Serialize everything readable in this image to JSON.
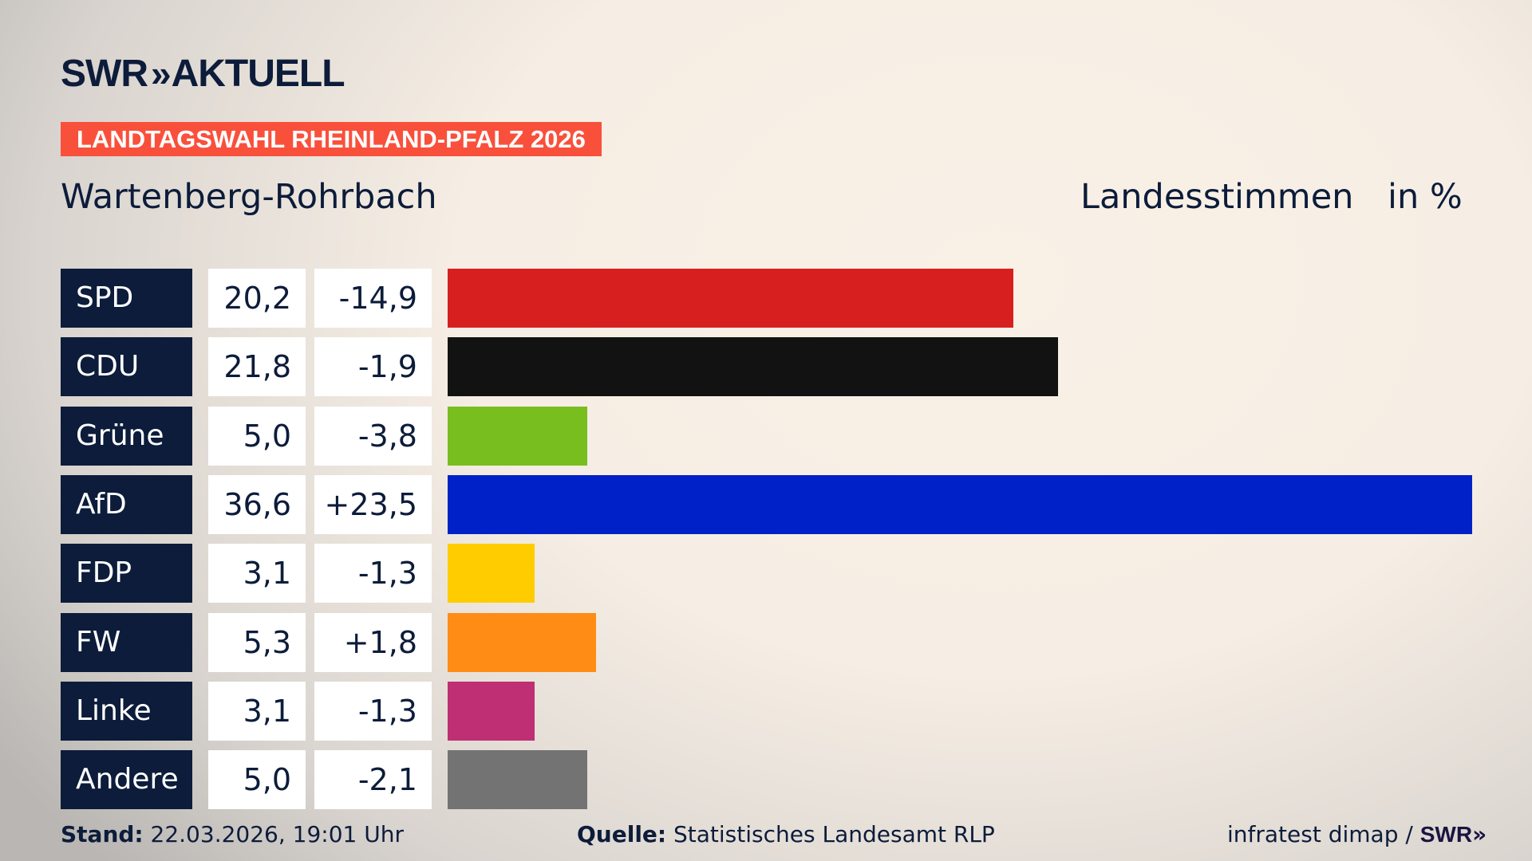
{
  "header": {
    "logo": "SWR AKTUELL",
    "logo_brand": "SWR",
    "logo_chevrons": "»",
    "logo_word": "AKTUELL",
    "banner": "LANDTAGSWAHL RHEINLAND-PFALZ 2026",
    "district": "Wartenberg-Rohrbach",
    "vote_type": "Landesstimmen",
    "unit": "in %"
  },
  "chart_data": {
    "type": "bar",
    "orientation": "horizontal",
    "categories": [
      "SPD",
      "CDU",
      "Grüne",
      "AfD",
      "FDP",
      "FW",
      "Linke",
      "Andere"
    ],
    "values": [
      20.2,
      21.8,
      5.0,
      36.6,
      3.1,
      5.3,
      3.1,
      5.0
    ],
    "value_labels": [
      "20,2",
      "21,8",
      "5,0",
      "36,6",
      "3,1",
      "5,3",
      "3,1",
      "5,0"
    ],
    "changes": [
      -14.9,
      -1.9,
      -3.8,
      23.5,
      -1.3,
      1.8,
      -1.3,
      -2.1
    ],
    "change_labels": [
      "-14,9",
      "-1,9",
      "-3,8",
      "+23,5",
      "-1,3",
      "+1,8",
      "-1,3",
      "-2,1"
    ],
    "colors": [
      "#d81f1f",
      "#121212",
      "#78be1e",
      "#0021c8",
      "#ffcc00",
      "#ff8c14",
      "#be2f74",
      "#737373"
    ],
    "xlim": [
      0,
      36.6
    ],
    "grid": false
  },
  "footer": {
    "stand_label": "Stand:",
    "stand_value": "22.03.2026, 19:01 Uhr",
    "source_label": "Quelle:",
    "source_value": "Statistisches Landesamt RLP",
    "credit": "infratest dimap /",
    "credit_brand": "SWR",
    "credit_chevrons": "»"
  },
  "colors": {
    "navy": "#0c1c3a",
    "banner": "#f9503c"
  }
}
